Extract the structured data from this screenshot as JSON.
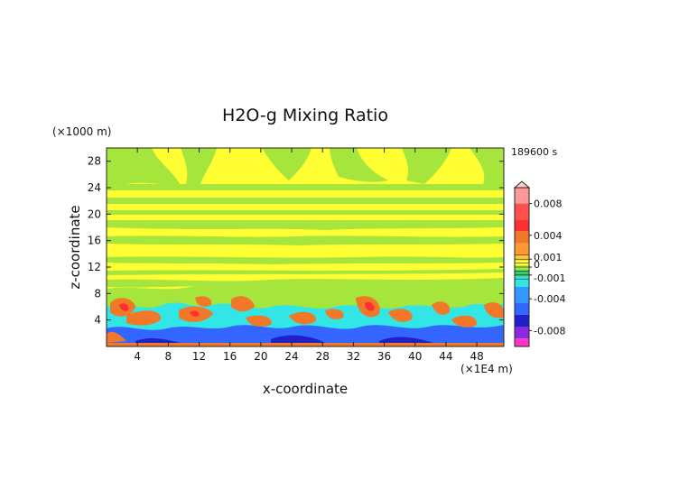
{
  "chart_data": {
    "type": "heatmap",
    "title": "H2O-g Mixing Ratio",
    "xlabel": "x-coordinate",
    "ylabel": "z-coordinate",
    "x_unit": "(×1E4 m)",
    "y_unit": "(×1000 m)",
    "time_label": "189600 s",
    "xlim": [
      0,
      51.5
    ],
    "ylim": [
      0,
      30
    ],
    "x_ticks": [
      4,
      8,
      12,
      16,
      20,
      24,
      28,
      32,
      36,
      40,
      44,
      48
    ],
    "y_ticks": [
      4,
      8,
      12,
      16,
      20,
      24,
      28
    ],
    "colorbar": {
      "range": [
        -0.01,
        0.01
      ],
      "tick_labels": [
        "0.008",
        "0.004",
        "0.001",
        "0",
        "-0.001",
        "-0.004",
        "-0.008"
      ],
      "tick_values": [
        0.008,
        0.004,
        0.001,
        0,
        -0.001,
        -0.004,
        -0.008
      ],
      "extend": "max"
    },
    "colors": {
      "background_field": "#ffff33",
      "green_field": "#a6e63c",
      "cyan": "#33e6e6",
      "blue": "#3366ff",
      "dark_blue": "#2020c8",
      "orange": "#f07828",
      "red": "#ff3030",
      "pink": "#ff9999",
      "magenta": "#ff33cc"
    }
  }
}
